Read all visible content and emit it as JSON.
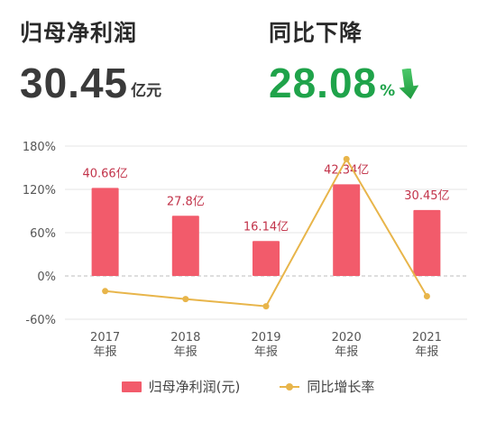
{
  "summary": {
    "left_label": "归母净利润",
    "left_value": "30.45",
    "left_unit": "亿元",
    "right_label": "同比下降",
    "right_value": "28.08",
    "right_unit": "%",
    "arrow_icon": "down-arrow-icon",
    "value_color": "#1fa34a"
  },
  "chart_data": {
    "type": "bar",
    "categories": [
      [
        "2017",
        "年报"
      ],
      [
        "2018",
        "年报"
      ],
      [
        "2019",
        "年报"
      ],
      [
        "2020",
        "年报"
      ],
      [
        "2021",
        "年报"
      ]
    ],
    "y_ticks": [
      "180%",
      "120%",
      "60%",
      "0%",
      "-60%"
    ],
    "y_tick_values": [
      180,
      120,
      60,
      0,
      -60
    ],
    "ylim": [
      -60,
      180
    ],
    "grid": true,
    "legend_position": "bottom",
    "series": [
      {
        "name": "归母净利润(元)",
        "type": "bar",
        "axis": "left",
        "values": [
          40.66,
          27.8,
          16.14,
          42.34,
          30.45
        ],
        "labels": [
          "40.66亿",
          "27.8亿",
          "16.14亿",
          "42.34亿",
          "30.45亿"
        ],
        "color": "#f25b6b"
      },
      {
        "name": "同比增长率",
        "type": "line",
        "axis": "right",
        "values": [
          -21,
          -32,
          -42,
          162,
          -28.08
        ],
        "color": "#e8b54a"
      }
    ]
  }
}
